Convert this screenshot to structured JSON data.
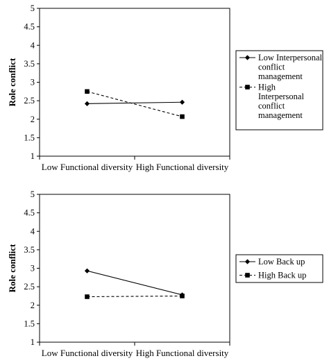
{
  "chart_data": [
    {
      "type": "line",
      "title": "",
      "xlabel": "",
      "ylabel": "Role conflict",
      "categories": [
        "Low Functional diversity",
        "High Functional diversity"
      ],
      "ylim": [
        1,
        5
      ],
      "yticks": [
        "1",
        "1.5",
        "2",
        "2.5",
        "3",
        "3.5",
        "4",
        "4.5",
        "5"
      ],
      "grid": false,
      "legend_position": "right",
      "series": [
        {
          "name": "Low Interpersonal conflict management",
          "legend_lines": [
            "Low Interpersonal",
            "conflict",
            "management"
          ],
          "marker": "diamond",
          "line_style": "solid",
          "values": [
            2.42,
            2.46
          ]
        },
        {
          "name": "High Interpersonal conflict management",
          "legend_lines": [
            "High",
            "Interpersonal",
            "conflict",
            "management"
          ],
          "marker": "square",
          "line_style": "dashed",
          "values": [
            2.75,
            2.07
          ]
        }
      ]
    },
    {
      "type": "line",
      "title": "",
      "xlabel": "",
      "ylabel": "Role conflict",
      "categories": [
        "Low Functional diversity",
        "High Functional diversity"
      ],
      "ylim": [
        1,
        5
      ],
      "yticks": [
        "1",
        "1.5",
        "2",
        "2.5",
        "3",
        "3.5",
        "4",
        "4.5",
        "5"
      ],
      "grid": false,
      "legend_position": "right",
      "series": [
        {
          "name": "Low Back up",
          "legend_lines": [
            "Low Back up"
          ],
          "marker": "diamond",
          "line_style": "solid",
          "values": [
            2.93,
            2.28
          ]
        },
        {
          "name": "High Back up",
          "legend_lines": [
            "High Back up"
          ],
          "marker": "square",
          "line_style": "dashed",
          "values": [
            2.23,
            2.25
          ]
        }
      ]
    }
  ]
}
